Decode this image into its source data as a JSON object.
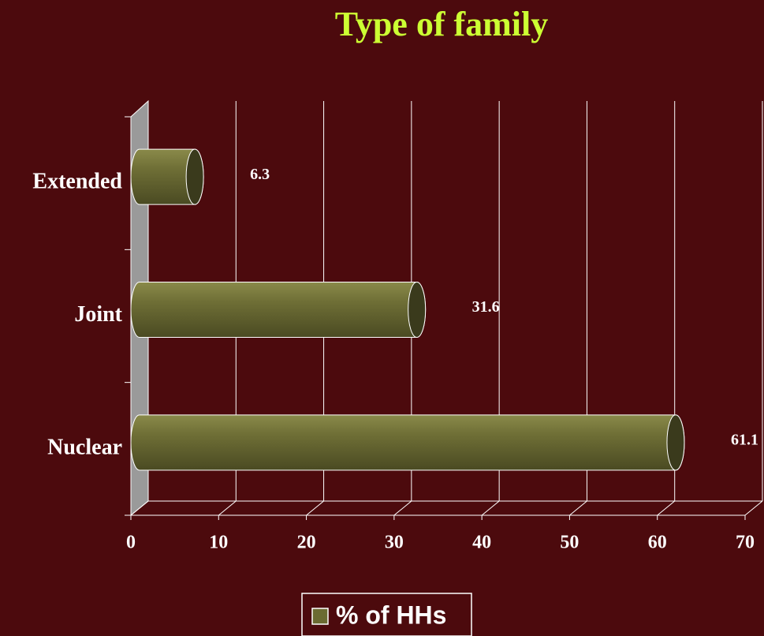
{
  "chart_data": {
    "type": "bar",
    "orientation": "horizontal",
    "title": "Type of family",
    "categories": [
      "Extended",
      "Joint",
      "Nuclear"
    ],
    "series": [
      {
        "name": "% of HHs",
        "color": "#6b6b32",
        "values": [
          6.3,
          31.6,
          61.1
        ]
      }
    ],
    "xlim": [
      0,
      70
    ],
    "xticks": [
      0,
      10,
      20,
      30,
      40,
      50,
      60,
      70
    ],
    "grid": true,
    "legend": "bottom"
  }
}
